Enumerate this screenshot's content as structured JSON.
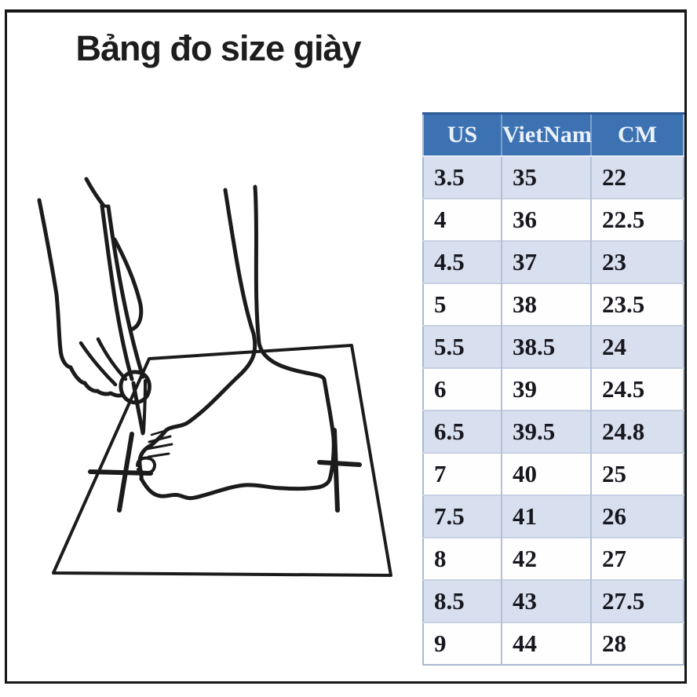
{
  "page": {
    "title": "Bảng đo size giày"
  },
  "illustration": {
    "name": "foot-measurement-drawing",
    "description": "Line drawing of a hand holding a pencil tracing the outline of a foot standing on a sheet of paper, with measurement tick marks at toe and heel"
  },
  "size_table": {
    "headers": [
      "US",
      "VietNam",
      "CM"
    ],
    "rows": [
      [
        "3.5",
        "35",
        "22"
      ],
      [
        "4",
        "36",
        "22.5"
      ],
      [
        "4.5",
        "37",
        "23"
      ],
      [
        "5",
        "38",
        "23.5"
      ],
      [
        "5.5",
        "38.5",
        "24"
      ],
      [
        "6",
        "39",
        "24.5"
      ],
      [
        "6.5",
        "39.5",
        "24.8"
      ],
      [
        "7",
        "40",
        "25"
      ],
      [
        "7.5",
        "41",
        "26"
      ],
      [
        "8",
        "42",
        "27"
      ],
      [
        "8.5",
        "43",
        "27.5"
      ],
      [
        "9",
        "44",
        "28"
      ]
    ]
  },
  "colors": {
    "header_bg": "#3d72b2",
    "header_text": "#e9f1fa",
    "row_shaded": "#d8dfee",
    "row_plain": "#fefefe",
    "grid_line": "#b3c1d8",
    "frame_border": "#161616",
    "ink": "#1b1b1b"
  }
}
